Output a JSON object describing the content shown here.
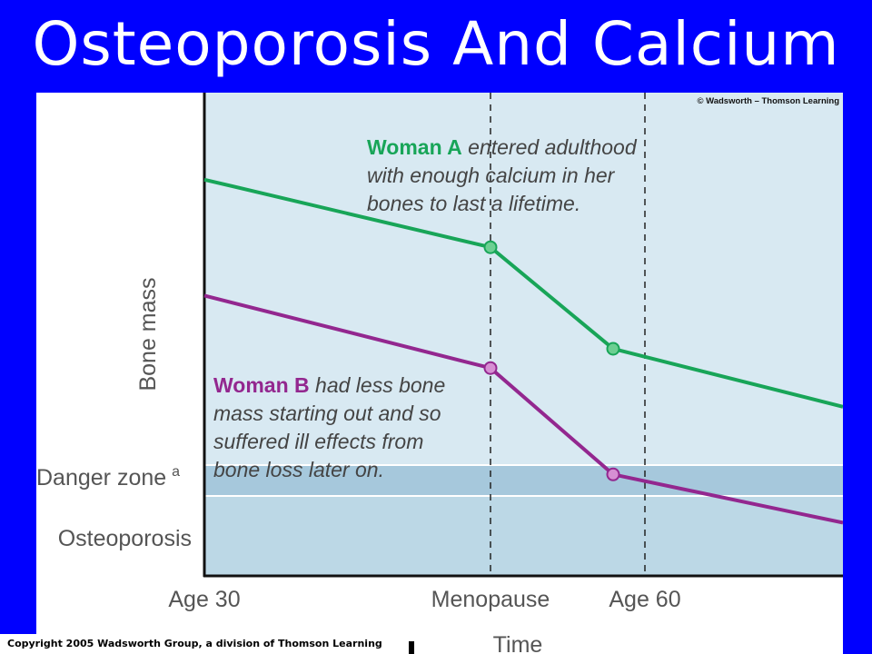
{
  "slide": {
    "title": "Osteoporosis And Calcium",
    "footer": "Copyright 2005 Wadsworth Group, a division of Thomson Learning"
  },
  "figure": {
    "credit": "© Wadsworth – Thomson Learning",
    "colors": {
      "woman_a": "#18a558",
      "woman_b": "#93278f",
      "plot_bg": "#d8e9f2",
      "danger_band": "#a6c8dc",
      "osteo_band": "#bcd8e6"
    }
  },
  "chart_data": {
    "type": "line",
    "xlabel": "Time",
    "ylabel": "Bone mass",
    "x_ticks": [
      "Age 30",
      "Menopause",
      "Age 60"
    ],
    "zones": [
      {
        "label": "Danger zone",
        "superscript": "a"
      },
      {
        "label": "Osteoporosis"
      }
    ],
    "series": [
      {
        "name": "Woman A",
        "description": "entered adulthood with enough calcium in her bones to last a lifetime.",
        "annotation_lines": [
          {
            "bold": "Woman A",
            "rest": " entered adulthood"
          },
          {
            "bold": "",
            "rest": "with enough calcium in her"
          },
          {
            "bold": "",
            "rest": "bones to last a lifetime."
          }
        ],
        "points": [
          {
            "x": "Age 30",
            "y": 0.82
          },
          {
            "x": "Menopause",
            "y": 0.68
          },
          {
            "x": "Age 60",
            "y": 0.47
          },
          {
            "x": "end",
            "y": 0.35
          }
        ]
      },
      {
        "name": "Woman B",
        "description": "had less bone mass starting out and so suffered ill effects from bone loss later on.",
        "annotation_lines": [
          {
            "bold": "Woman B",
            "rest": " had less bone"
          },
          {
            "bold": "",
            "rest": "mass starting out and so"
          },
          {
            "bold": "",
            "rest": "suffered ill effects from"
          },
          {
            "bold": "",
            "rest": "bone loss later on."
          }
        ],
        "points": [
          {
            "x": "Age 30",
            "y": 0.58
          },
          {
            "x": "Menopause",
            "y": 0.43
          },
          {
            "x": "Age 60",
            "y": 0.21
          },
          {
            "x": "end",
            "y": 0.11
          }
        ]
      }
    ],
    "grid": false,
    "legend": "inline annotations"
  }
}
